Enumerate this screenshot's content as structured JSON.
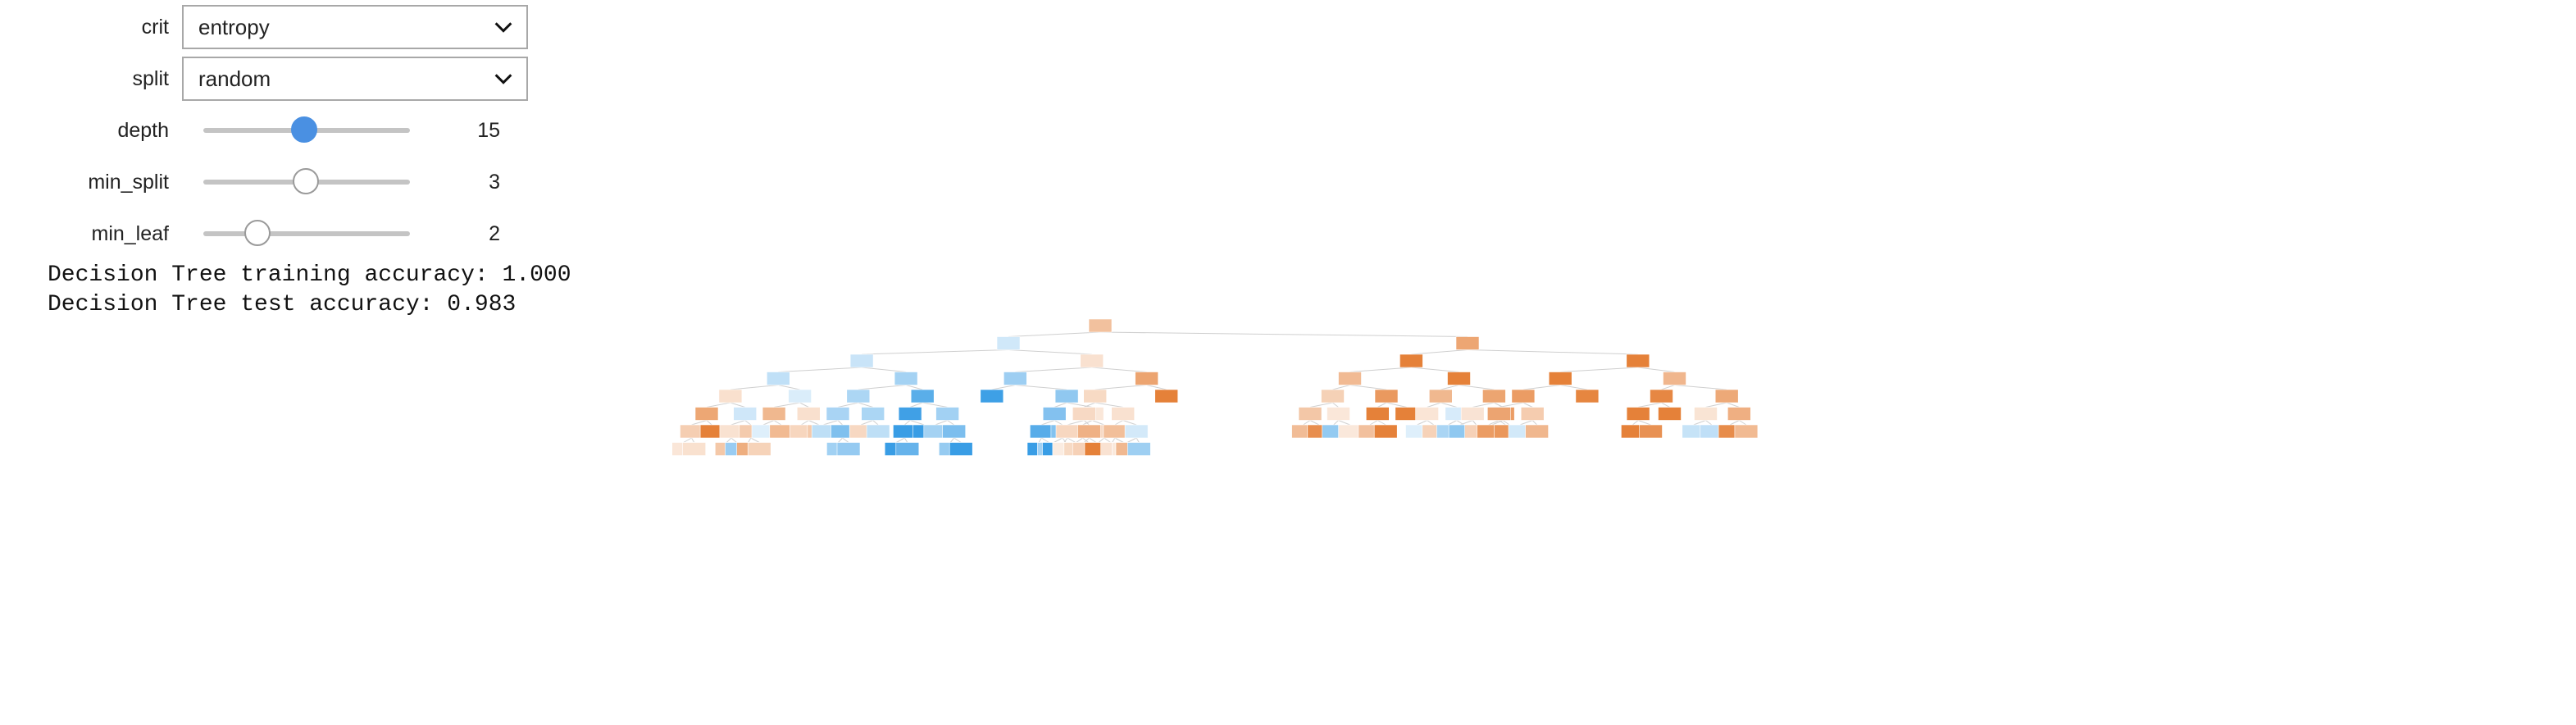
{
  "controls": {
    "crit": {
      "label": "crit",
      "value": "entropy"
    },
    "split": {
      "label": "split",
      "value": "random"
    },
    "depth": {
      "label": "depth",
      "value": "15",
      "level": 0.5
    },
    "min_split": {
      "label": "min_split",
      "value": "3",
      "level": 0.5
    },
    "min_leaf": {
      "label": "min_leaf",
      "value": "2",
      "level": 0.25
    }
  },
  "output": {
    "train": "Decision Tree training accuracy: 1.000",
    "test": "Decision Tree test accuracy: 0.983"
  },
  "colors": {
    "accent": "#4a90e2",
    "class_0": "#e58139",
    "class_1": "#399de5",
    "edge": "#cfcfcf"
  }
}
